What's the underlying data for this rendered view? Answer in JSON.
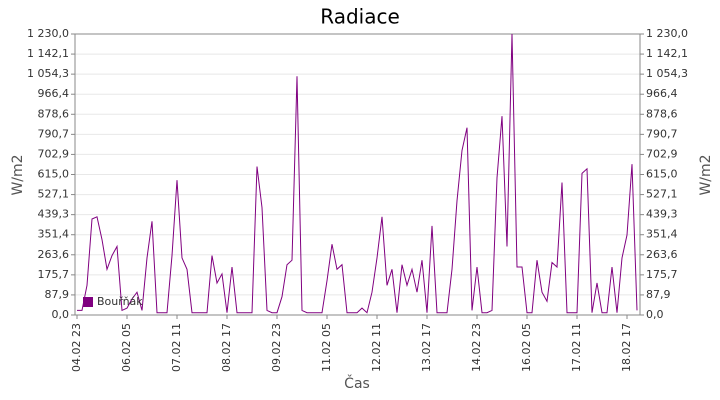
{
  "chart_data": {
    "type": "line",
    "title": "Radiace",
    "ylabel": "W/m2",
    "xlabel": "Čas",
    "categories": [
      "04.02 23",
      null,
      null,
      null,
      null,
      null,
      null,
      null,
      null,
      null,
      "06.02 05",
      null,
      null,
      null,
      null,
      null,
      null,
      null,
      null,
      null,
      "07.02 11",
      null,
      null,
      null,
      null,
      null,
      null,
      null,
      null,
      null,
      "08.02 17",
      null,
      null,
      null,
      null,
      null,
      null,
      null,
      null,
      null,
      "09.02 23",
      null,
      null,
      null,
      null,
      null,
      null,
      null,
      null,
      null,
      "11.02 05",
      null,
      null,
      null,
      null,
      null,
      null,
      null,
      null,
      null,
      "12.02 11",
      null,
      null,
      null,
      null,
      null,
      null,
      null,
      null,
      null,
      "13.02 17",
      null,
      null,
      null,
      null,
      null,
      null,
      null,
      null,
      null,
      "14.02 23",
      null,
      null,
      null,
      null,
      null,
      null,
      null,
      null,
      null,
      "16.02 05",
      null,
      null,
      null,
      null,
      null,
      null,
      null,
      null,
      null,
      "17.02 11",
      null,
      null,
      null,
      null,
      null,
      null,
      null,
      null,
      null,
      "18.02 17",
      null,
      null
    ],
    "series": [
      {
        "name": "Bouřňák",
        "color": "#800080",
        "values": [
          20,
          20,
          130,
          420,
          430,
          330,
          200,
          260,
          300,
          20,
          30,
          70,
          100,
          20,
          250,
          410,
          10,
          10,
          10,
          260,
          590,
          250,
          200,
          10,
          10,
          10,
          10,
          260,
          140,
          180,
          10,
          210,
          10,
          10,
          10,
          10,
          650,
          470,
          20,
          10,
          10,
          80,
          220,
          240,
          1045,
          20,
          10,
          10,
          10,
          10,
          150,
          310,
          200,
          220,
          10,
          10,
          10,
          30,
          10,
          100,
          250,
          430,
          130,
          200,
          10,
          220,
          130,
          200,
          100,
          240,
          10,
          390,
          10,
          10,
          10,
          200,
          500,
          720,
          820,
          20,
          210,
          10,
          10,
          20,
          600,
          870,
          300,
          1230,
          210,
          210,
          10,
          10,
          240,
          100,
          60,
          230,
          210,
          580,
          10,
          10,
          10,
          620,
          640,
          10,
          140,
          10,
          10,
          210,
          10,
          250,
          350,
          660,
          20
        ]
      }
    ],
    "ylim": [
      0,
      1230
    ],
    "yticks": [
      {
        "value": 0,
        "label": "0,0"
      },
      {
        "value": 87.9,
        "label": "87,9"
      },
      {
        "value": 175.7,
        "label": "175,7"
      },
      {
        "value": 263.6,
        "label": "263,6"
      },
      {
        "value": 351.4,
        "label": "351,4"
      },
      {
        "value": 439.3,
        "label": "439,3"
      },
      {
        "value": 527.1,
        "label": "527,1"
      },
      {
        "value": 615,
        "label": "615,0"
      },
      {
        "value": 702.9,
        "label": "702,9"
      },
      {
        "value": 790.7,
        "label": "790,7"
      },
      {
        "value": 878.6,
        "label": "878,6"
      },
      {
        "value": 966.4,
        "label": "966,4"
      },
      {
        "value": 1054.3,
        "label": "1 054,3"
      },
      {
        "value": 1142.1,
        "label": "1 142,1"
      },
      {
        "value": 1230,
        "label": "1 230,0"
      }
    ],
    "grid": true,
    "legend": "lower left"
  }
}
